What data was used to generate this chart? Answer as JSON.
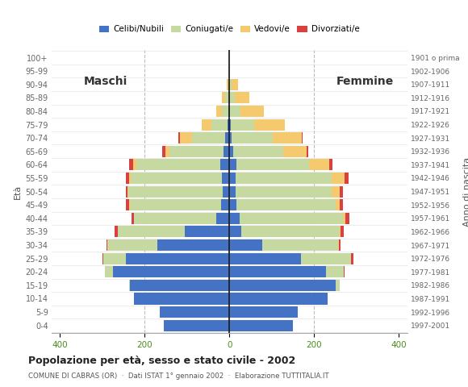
{
  "age_groups": [
    "0-4",
    "5-9",
    "10-14",
    "15-19",
    "20-24",
    "25-29",
    "30-34",
    "35-39",
    "40-44",
    "45-49",
    "50-54",
    "55-59",
    "60-64",
    "65-69",
    "70-74",
    "75-79",
    "80-84",
    "85-89",
    "90-94",
    "95-99",
    "100+"
  ],
  "birth_years": [
    "1997-2001",
    "1992-1996",
    "1987-1991",
    "1982-1986",
    "1977-1981",
    "1972-1976",
    "1967-1971",
    "1962-1966",
    "1957-1961",
    "1952-1956",
    "1947-1951",
    "1942-1946",
    "1937-1941",
    "1932-1936",
    "1927-1931",
    "1922-1926",
    "1917-1921",
    "1912-1916",
    "1907-1911",
    "1902-1906",
    "1901 o prima"
  ],
  "males": {
    "celibe": [
      155,
      165,
      225,
      235,
      275,
      245,
      170,
      105,
      30,
      20,
      16,
      18,
      22,
      14,
      10,
      4,
      2,
      1,
      0,
      0,
      0
    ],
    "coniugato": [
      0,
      0,
      0,
      2,
      18,
      52,
      118,
      158,
      195,
      215,
      222,
      215,
      198,
      128,
      78,
      38,
      16,
      8,
      3,
      0,
      0
    ],
    "vedovo": [
      0,
      0,
      0,
      0,
      0,
      0,
      0,
      0,
      1,
      2,
      2,
      4,
      8,
      8,
      28,
      24,
      12,
      8,
      3,
      0,
      0
    ],
    "divorziato": [
      0,
      0,
      0,
      0,
      0,
      2,
      2,
      8,
      5,
      8,
      5,
      8,
      8,
      8,
      5,
      0,
      0,
      0,
      0,
      0,
      0
    ]
  },
  "females": {
    "nubile": [
      150,
      162,
      232,
      252,
      228,
      170,
      78,
      28,
      24,
      16,
      14,
      14,
      16,
      10,
      5,
      4,
      2,
      1,
      0,
      0,
      0
    ],
    "coniugata": [
      0,
      0,
      1,
      8,
      42,
      118,
      178,
      232,
      245,
      235,
      228,
      228,
      172,
      118,
      98,
      55,
      24,
      12,
      5,
      0,
      0
    ],
    "vedova": [
      0,
      0,
      0,
      0,
      0,
      0,
      2,
      2,
      5,
      10,
      18,
      30,
      48,
      55,
      68,
      72,
      55,
      34,
      15,
      2,
      0
    ],
    "divorziata": [
      0,
      0,
      0,
      0,
      2,
      5,
      5,
      8,
      10,
      8,
      8,
      10,
      8,
      3,
      2,
      0,
      0,
      0,
      0,
      0,
      0
    ]
  },
  "colors": {
    "celibe": "#4472c4",
    "coniugato": "#c5d9a0",
    "vedovo": "#f5c96e",
    "divorziato": "#d94040"
  },
  "title": "Popolazione per età, sesso e stato civile - 2002",
  "subtitle": "COMUNE DI CABRAS (OR)  ·  Dati ISTAT 1° gennaio 2002  ·  Elaborazione TUTTITALIA.IT",
  "xlim": 420,
  "legend_labels": [
    "Celibi/Nubili",
    "Coniugati/e",
    "Vedovi/e",
    "Divorziati/e"
  ],
  "ylabel_left": "Età",
  "ylabel_right": "Anno di nascita",
  "label_maschi": "Maschi",
  "label_femmine": "Femmine",
  "bg_color": "#ffffff",
  "plot_bg": "#ffffff",
  "grid_color": "#bbbbbb",
  "bar_height": 0.85
}
